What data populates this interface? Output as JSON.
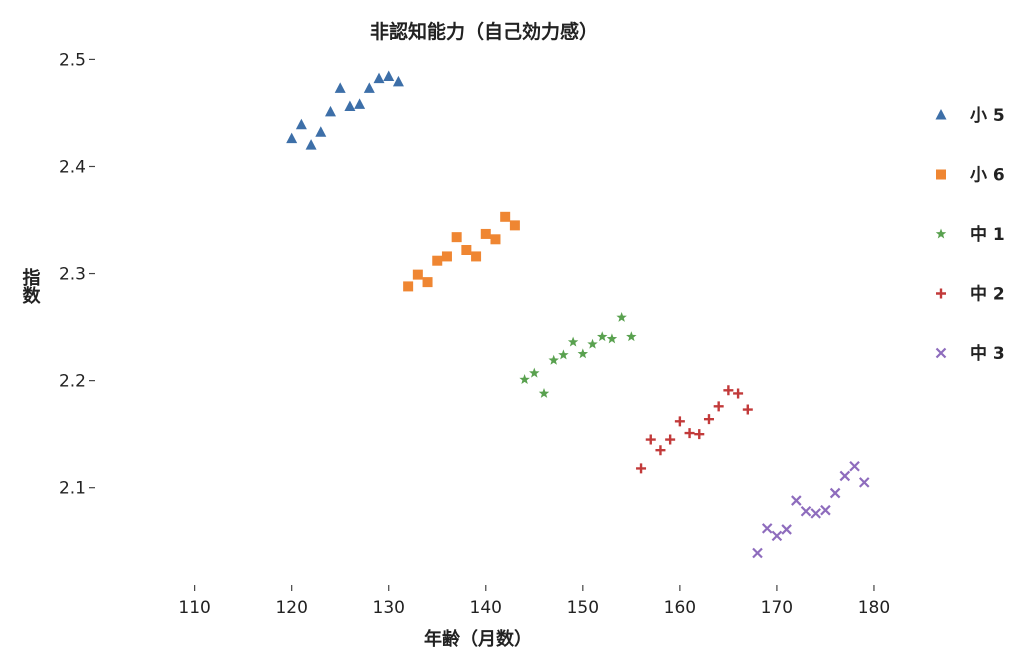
{
  "chart_data": {
    "type": "scatter",
    "title": "非認知能力（自己効力感）",
    "xlabel": "年齢（月数）",
    "ylabel": "指数",
    "xlim": [
      102,
      190
    ],
    "ylim": [
      2.025,
      2.52
    ],
    "xticks": [
      110,
      120,
      130,
      140,
      150,
      160,
      170,
      180
    ],
    "yticks": [
      2.1,
      2.2,
      2.3,
      2.4,
      2.5
    ],
    "ytick_labels": [
      "2.1",
      "2.2",
      "2.3",
      "2.4",
      "2.5"
    ],
    "grid": false,
    "legend_position": "right",
    "series": [
      {
        "name": "小 5",
        "marker": "triangle",
        "color": "#3d6fa8",
        "x": [
          120,
          121,
          122,
          123,
          124,
          125,
          126,
          127,
          128,
          129,
          130,
          131
        ],
        "y": [
          2.426,
          2.439,
          2.42,
          2.432,
          2.451,
          2.473,
          2.456,
          2.458,
          2.473,
          2.482,
          2.484,
          2.479
        ]
      },
      {
        "name": "小 6",
        "marker": "square",
        "color": "#ef8632",
        "x": [
          132,
          133,
          134,
          135,
          136,
          137,
          138,
          139,
          140,
          141,
          142,
          143
        ],
        "y": [
          2.288,
          2.299,
          2.292,
          2.312,
          2.316,
          2.334,
          2.322,
          2.316,
          2.337,
          2.332,
          2.353,
          2.345
        ]
      },
      {
        "name": "中 1",
        "marker": "star",
        "color": "#59a14f",
        "x": [
          144,
          145,
          146,
          147,
          148,
          149,
          150,
          151,
          152,
          153,
          154,
          155
        ],
        "y": [
          2.201,
          2.207,
          2.188,
          2.219,
          2.224,
          2.236,
          2.225,
          2.234,
          2.241,
          2.239,
          2.259,
          2.241
        ]
      },
      {
        "name": "中 2",
        "marker": "plus",
        "color": "#c23a3a",
        "x": [
          156,
          157,
          158,
          159,
          160,
          161,
          162,
          163,
          164,
          165,
          166,
          167
        ],
        "y": [
          2.118,
          2.145,
          2.135,
          2.145,
          2.162,
          2.151,
          2.15,
          2.164,
          2.176,
          2.191,
          2.188,
          2.173
        ]
      },
      {
        "name": "中 3",
        "marker": "x",
        "color": "#8e6cbd",
        "x": [
          168,
          169,
          170,
          171,
          172,
          173,
          174,
          175,
          176,
          177,
          178,
          179
        ],
        "y": [
          2.039,
          2.062,
          2.055,
          2.061,
          2.088,
          2.078,
          2.076,
          2.079,
          2.095,
          2.111,
          2.12,
          2.105
        ]
      }
    ]
  }
}
